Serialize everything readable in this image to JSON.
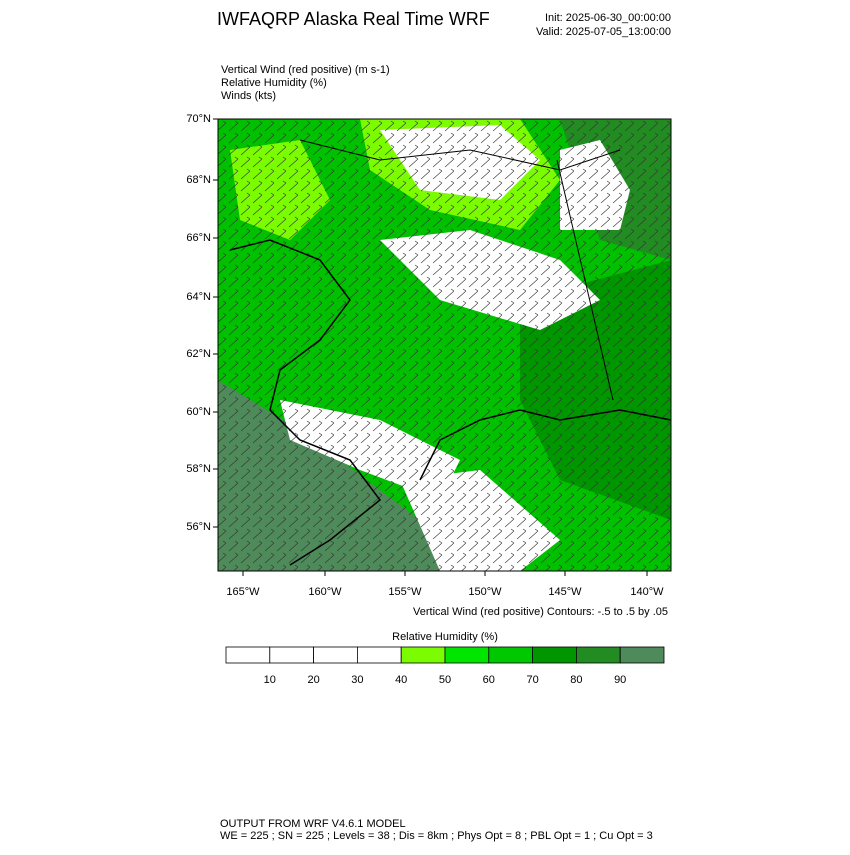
{
  "header": {
    "title": "IWFAQRP Alaska Real Time WRF",
    "init": "Init: 2025-06-30_00:00:00",
    "valid": "Valid: 2025-07-05_13:00:00"
  },
  "fields": [
    "Vertical Wind (red positive)   (m s-1)",
    "Relative Humidity   (%)",
    "Winds   (kts)"
  ],
  "map": {
    "lat_labels": [
      "70°N",
      "68°N",
      "66°N",
      "64°N",
      "62°N",
      "60°N",
      "58°N",
      "56°N"
    ],
    "lon_labels": [
      "165°W",
      "160°W",
      "155°W",
      "150°W",
      "145°W",
      "140°W"
    ],
    "contour_note": "Vertical Wind (red positive) Contours: -.5 to .5 by .05"
  },
  "colorbar": {
    "title": "Relative Humidity  (%)",
    "ticks": [
      10,
      20,
      30,
      40,
      50,
      60,
      70,
      80,
      90
    ],
    "colors": [
      "#ffffff",
      "#ffffff",
      "#ffffff",
      "#ffffff",
      "#7cfc00",
      "#00e600",
      "#00c800",
      "#009600",
      "#228b22",
      "#4f8a5a"
    ]
  },
  "footer": {
    "line1": "OUTPUT FROM WRF V4.6.1 MODEL",
    "line2": "WE = 225 ; SN = 225 ; Levels = 38 ; Dis = 8km ; Phys Opt = 8 ; PBL Opt = 1 ; Cu Opt = 3"
  }
}
